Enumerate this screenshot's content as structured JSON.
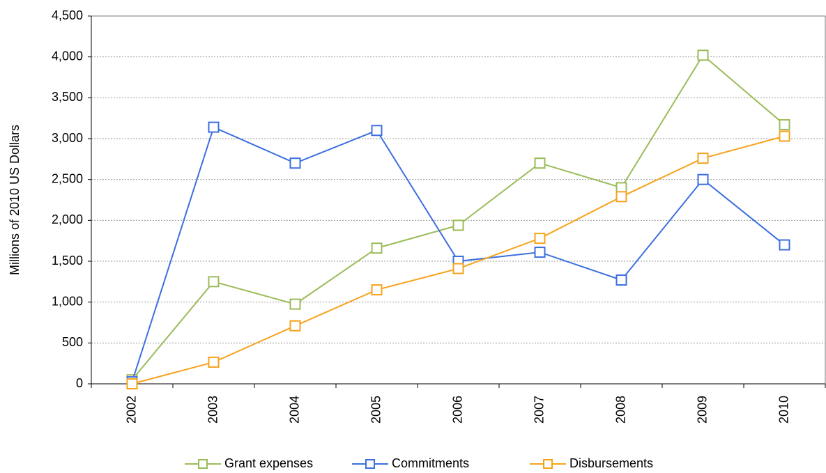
{
  "chart_data": {
    "type": "line",
    "y_label": "Millions of 2010 US Dollars",
    "categories": [
      "2002",
      "2003",
      "2004",
      "2005",
      "2006",
      "2007",
      "2008",
      "2009",
      "2010"
    ],
    "series": [
      {
        "name": "Grant expenses",
        "color": "#9bbb59",
        "values": [
          50,
          1250,
          975,
          1660,
          1940,
          2700,
          2400,
          4020,
          3170
        ]
      },
      {
        "name": "Commitments",
        "color": "#3c6fe0",
        "values": [
          25,
          3140,
          2700,
          3100,
          1500,
          1610,
          1270,
          2500,
          1700
        ]
      },
      {
        "name": "Disbursements",
        "color": "#f7a21b",
        "values": [
          0,
          265,
          710,
          1150,
          1410,
          1780,
          2290,
          2760,
          3030
        ]
      }
    ],
    "ylim": [
      0,
      4500
    ],
    "yticks": [
      0,
      500,
      {
        "value": 1000,
        "label": "1,000"
      },
      {
        "value": 1500,
        "label": "1,500"
      },
      {
        "value": 2000,
        "label": "2,000"
      },
      {
        "value": 2500,
        "label": "2,500"
      },
      {
        "value": 3000,
        "label": "3,000"
      },
      {
        "value": 3500,
        "label": "3,500"
      },
      {
        "value": 4000,
        "label": "4,000"
      },
      {
        "value": 4500,
        "label": "4,500"
      }
    ],
    "grid": true,
    "legend": "bottom"
  }
}
